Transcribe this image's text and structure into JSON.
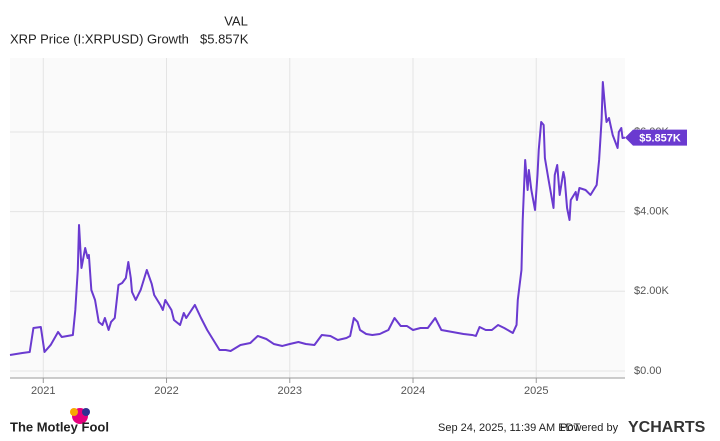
{
  "chart_data": {
    "type": "line",
    "value_header": "VAL",
    "series": [
      {
        "name": "XRP Price (I:XRPUSD) Growth",
        "color": "#6a3ad0",
        "value_label": "$5.857K",
        "x": [
          2020.73,
          2020.83,
          2020.89,
          2020.92,
          2020.98,
          2021.01,
          2021.06,
          2021.12,
          2021.15,
          2021.24,
          2021.26,
          2021.28,
          2021.29,
          2021.31,
          2021.34,
          2021.36,
          2021.37,
          2021.39,
          2021.42,
          2021.45,
          2021.48,
          2021.5,
          2021.53,
          2021.55,
          2021.58,
          2021.61,
          2021.64,
          2021.67,
          2021.69,
          2021.71,
          2021.72,
          2021.75,
          2021.79,
          2021.84,
          2021.88,
          2021.9,
          2021.95,
          2021.97,
          2021.99,
          2022.04,
          2022.06,
          2022.11,
          2022.14,
          2022.16,
          2022.23,
          2022.28,
          2022.33,
          2022.38,
          2022.43,
          2022.48,
          2022.52,
          2022.6,
          2022.68,
          2022.74,
          2022.81,
          2022.87,
          2022.94,
          2023.0,
          2023.07,
          2023.13,
          2023.2,
          2023.26,
          2023.33,
          2023.39,
          2023.46,
          2023.49,
          2023.52,
          2023.55,
          2023.57,
          2023.62,
          2023.67,
          2023.73,
          2023.8,
          2023.85,
          2023.9,
          2023.95,
          2024.0,
          2024.06,
          2024.12,
          2024.18,
          2024.23,
          2024.32,
          2024.41,
          2024.48,
          2024.51,
          2024.54,
          2024.59,
          2024.64,
          2024.69,
          2024.74,
          2024.81,
          2024.84,
          2024.85,
          2024.88,
          2024.89,
          2024.91,
          2024.93,
          2024.94,
          2024.96,
          2024.99,
          2025.01,
          2025.02,
          2025.04,
          2025.06,
          2025.07,
          2025.1,
          2025.14,
          2025.15,
          2025.17,
          2025.19,
          2025.22,
          2025.23,
          2025.25,
          2025.27,
          2025.28,
          2025.32,
          2025.33,
          2025.35,
          2025.4,
          2025.44,
          2025.49,
          2025.51,
          2025.53,
          2025.54,
          2025.56,
          2025.57,
          2025.59,
          2025.62,
          2025.66,
          2025.67,
          2025.69,
          2025.7,
          2025.72
        ],
        "values": [
          402,
          452,
          477,
          1079,
          1104,
          477,
          653,
          979,
          853,
          904,
          1531,
          2535,
          3665,
          2585,
          3087,
          2836,
          2912,
          2033,
          1782,
          1230,
          1155,
          1330,
          1029,
          1230,
          1330,
          2159,
          2209,
          2334,
          2736,
          2334,
          1983,
          1782,
          2033,
          2535,
          2184,
          1908,
          1657,
          1531,
          1782,
          1531,
          1280,
          1155,
          1456,
          1330,
          1657,
          1330,
          1029,
          778,
          527,
          527,
          502,
          653,
          703,
          879,
          803,
          678,
          628,
          678,
          728,
          678,
          653,
          904,
          879,
          778,
          828,
          879,
          1330,
          1230,
          1029,
          929,
          904,
          929,
          1029,
          1330,
          1130,
          1130,
          1029,
          1079,
          1079,
          1330,
          1029,
          979,
          929,
          904,
          879,
          1104,
          1029,
          1029,
          1155,
          1079,
          954,
          1155,
          1782,
          2535,
          3790,
          5296,
          4543,
          5045,
          4543,
          4041,
          4920,
          5547,
          6250,
          6175,
          5346,
          4794,
          4091,
          4920,
          5171,
          4418,
          4995,
          4844,
          4091,
          3790,
          4292,
          4493,
          4292,
          4593,
          4543,
          4418,
          4669,
          5296,
          6300,
          7254,
          6551,
          6250,
          6350,
          5924,
          5597,
          5999,
          6099,
          5848,
          5857
        ]
      }
    ],
    "xlim": [
      2020.73,
      2025.72
    ],
    "xticks": [
      2021,
      2022,
      2023,
      2024,
      2025
    ],
    "ylim": [
      -176,
      7856
    ],
    "yticks": [
      {
        "value": 0,
        "label": "$0.00"
      },
      {
        "value": 2000,
        "label": "$2.00K"
      },
      {
        "value": 4000,
        "label": "$4.00K"
      },
      {
        "value": 6000,
        "label": "$6.00K"
      }
    ],
    "grid": true
  },
  "footer": {
    "brand": "The Motley Fool",
    "timestamp": "Sep 24, 2025, 11:39 AM EDT",
    "powered_by": "Powered by",
    "provider": "YCHARTS"
  }
}
